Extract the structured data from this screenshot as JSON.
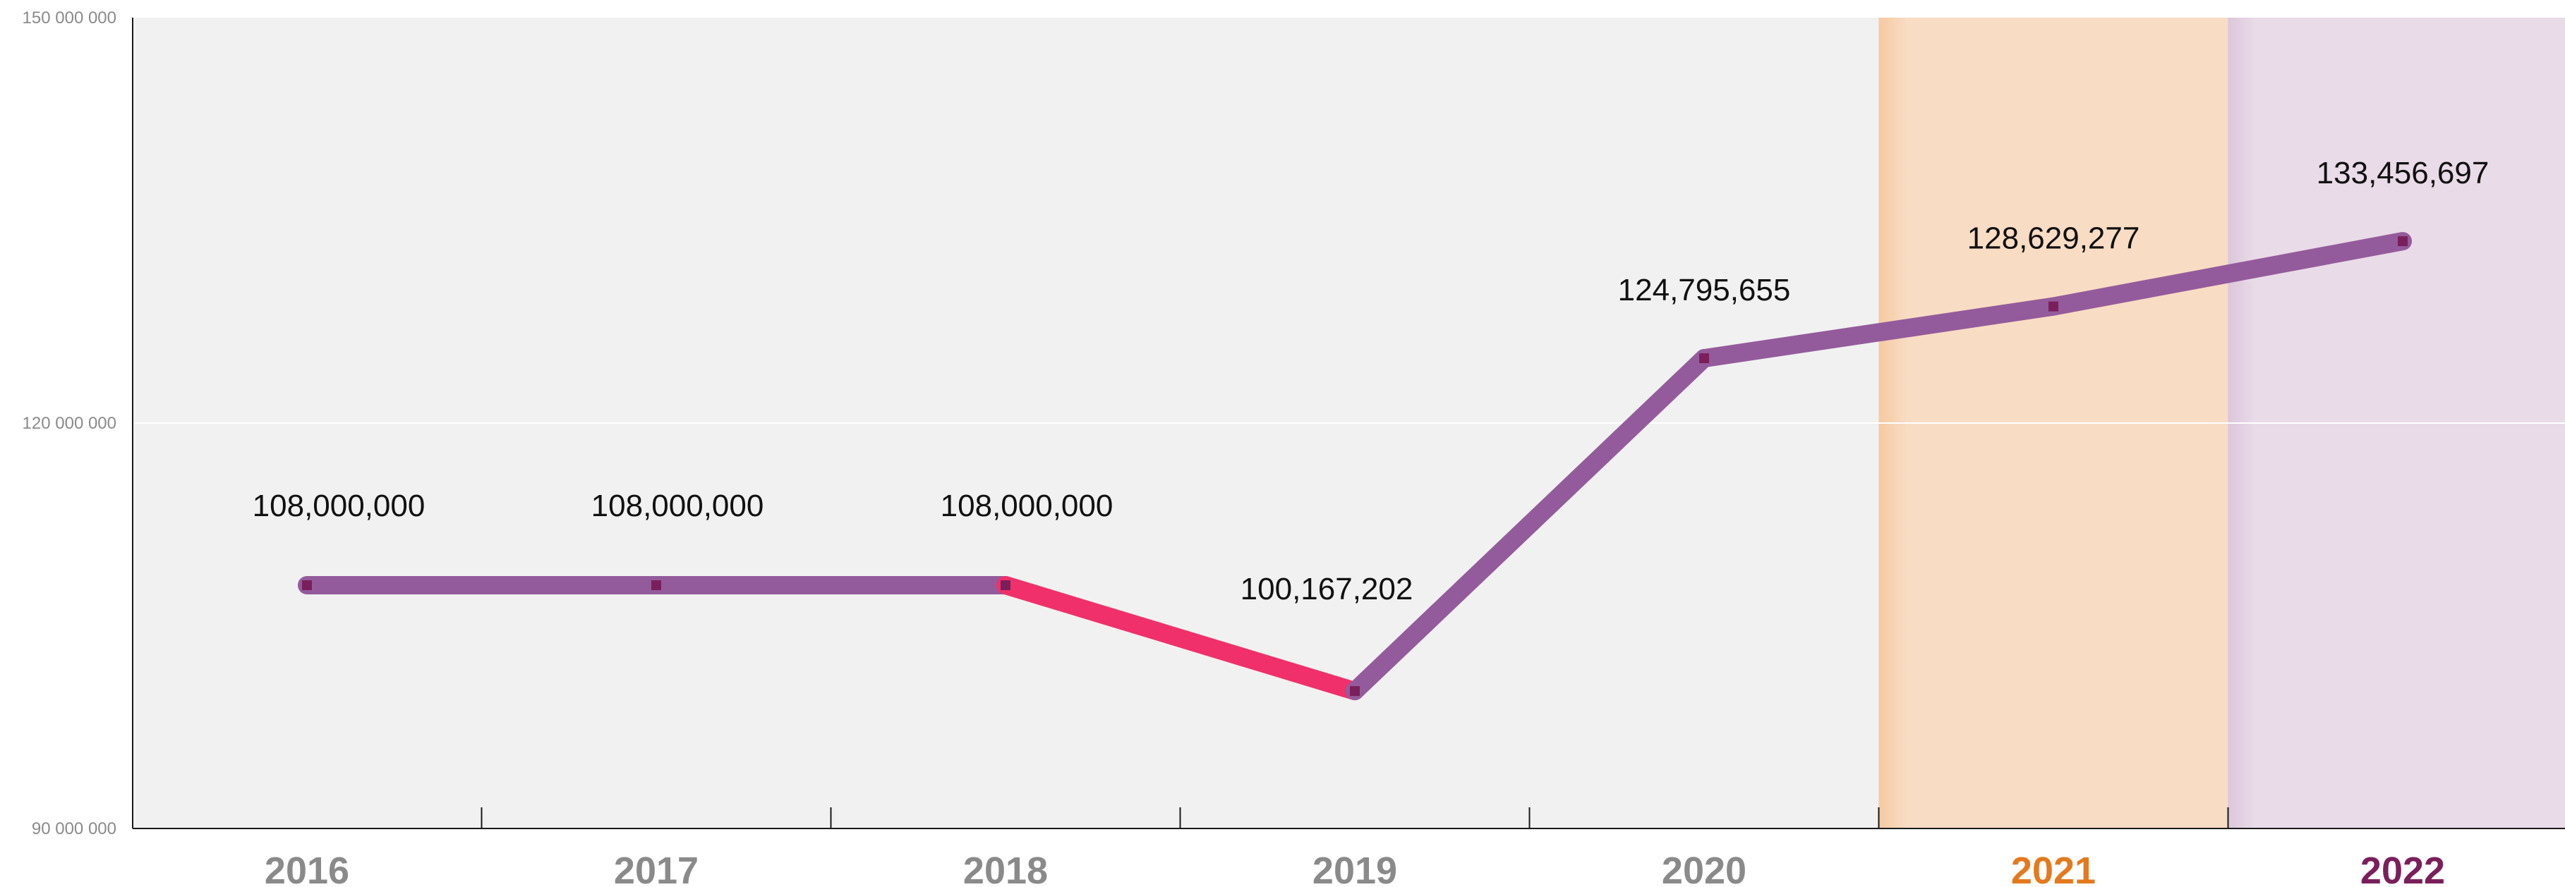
{
  "chart_data": {
    "type": "line",
    "categories": [
      "2016",
      "2017",
      "2018",
      "2019",
      "2020",
      "2021",
      "2022"
    ],
    "values": [
      108000000,
      108000000,
      108000000,
      100167202,
      124795655,
      128629277,
      133456697
    ],
    "value_labels": [
      "108,000,000",
      "108,000,000",
      "108,000,000",
      "100,167,202",
      "124,795,655",
      "128,629,277",
      "133,456,697"
    ],
    "y_ticks": [
      {
        "value": 90000000,
        "label": "90 000 000"
      },
      {
        "value": 120000000,
        "label": "120 000 000"
      },
      {
        "value": 150000000,
        "label": "150 000 000"
      }
    ],
    "ylim": [
      90000000,
      150000000
    ],
    "grid": "horizontal at 120 000 000",
    "colors": {
      "plot_background": "#f1f1f1",
      "line": "#945b9c",
      "decline_segment": "#f0306a",
      "marker": "#7a1f5c",
      "category_label": "#8a8a8a",
      "highlight_2021_band": "#f8dcc4",
      "highlight_2021_label": "#e4791e",
      "highlight_2022_band": "#e9dbe8",
      "highlight_2022_label": "#7a1f5c"
    },
    "highlighted_categories": [
      "2021",
      "2022"
    ]
  }
}
